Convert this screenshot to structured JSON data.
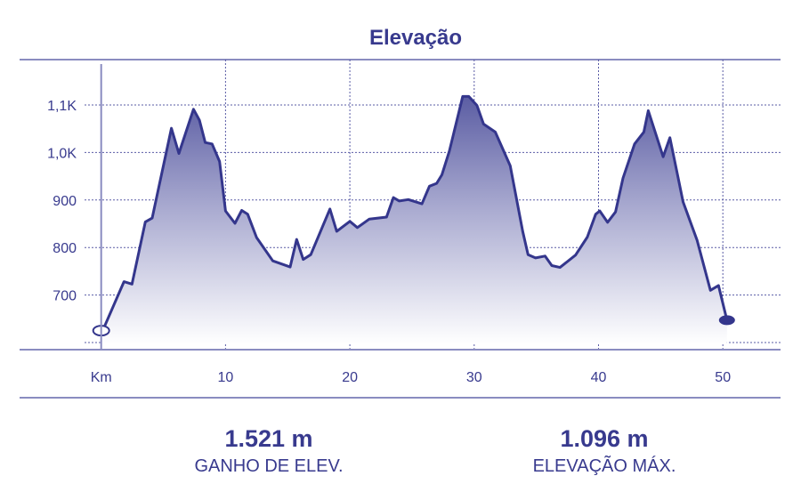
{
  "chart_data": {
    "type": "area",
    "title": "Elevação",
    "xlabel": "Km",
    "ylabel": "",
    "xlim": [
      0,
      55
    ],
    "ylim": [
      600,
      1150
    ],
    "grid": true,
    "x_ticks": [
      {
        "value": 0,
        "label": "Km"
      },
      {
        "value": 10,
        "label": "10"
      },
      {
        "value": 20,
        "label": "20"
      },
      {
        "value": 30,
        "label": "30"
      },
      {
        "value": 40,
        "label": "40"
      },
      {
        "value": 50,
        "label": "50"
      }
    ],
    "y_ticks": [
      {
        "value": 700,
        "label": "700"
      },
      {
        "value": 800,
        "label": "800"
      },
      {
        "value": 900,
        "label": "900"
      },
      {
        "value": 1000,
        "label": "1,0K"
      },
      {
        "value": 1100,
        "label": "1,1K"
      }
    ],
    "series": [
      {
        "name": "Elevação",
        "x": [
          0,
          0.3,
          1.83,
          2.48,
          3.55,
          4.1,
          5.65,
          6.25,
          7.42,
          7.9,
          8.37,
          8.92,
          9.52,
          10.0,
          10.76,
          11.3,
          11.78,
          12.5,
          13.8,
          15.2,
          15.72,
          16.25,
          16.86,
          18.4,
          18.94,
          20.0,
          20.6,
          21.57,
          22.95,
          23.5,
          23.97,
          24.7,
          25.8,
          26.4,
          26.98,
          27.4,
          28.0,
          29.08,
          29.56,
          30.22,
          30.75,
          31.7,
          32.9,
          33.9,
          34.33,
          34.93,
          35.7,
          36.24,
          36.9,
          38.15,
          39.1,
          39.77,
          40.1,
          40.73,
          41.37,
          41.97,
          42.9,
          43.64,
          44.0,
          45.2,
          45.74,
          46.8,
          47.93,
          49.0,
          49.65,
          50.33
        ],
        "y": [
          625,
          636,
          728,
          723,
          854,
          862,
          1051,
          998,
          1091,
          1068,
          1021,
          1018,
          981,
          877,
          851,
          878,
          870,
          821,
          772,
          759,
          817,
          775,
          785,
          881,
          834,
          855,
          842,
          860,
          864,
          905,
          898,
          901,
          892,
          929,
          935,
          953,
          1003,
          1118,
          1118,
          1099,
          1060,
          1043,
          972,
          834,
          785,
          778,
          782,
          762,
          758,
          784,
          822,
          870,
          877,
          853,
          875,
          946,
          1018,
          1043,
          1088,
          991,
          1031,
          896,
          815,
          710,
          720,
          647
        ]
      }
    ],
    "start_marker": {
      "km": 0,
      "elev": 625
    },
    "end_marker": {
      "km": 50.33,
      "elev": 647
    }
  },
  "stats": [
    {
      "value": "1.521 m",
      "label": "GANHO DE ELEV."
    },
    {
      "value": "1.096 m",
      "label": "ELEVAÇÃO MÁX."
    }
  ],
  "colors": {
    "text": "#383a8e",
    "line": "#34368c",
    "rule": "#8a8cc0",
    "grid": "#5a5ca6"
  }
}
